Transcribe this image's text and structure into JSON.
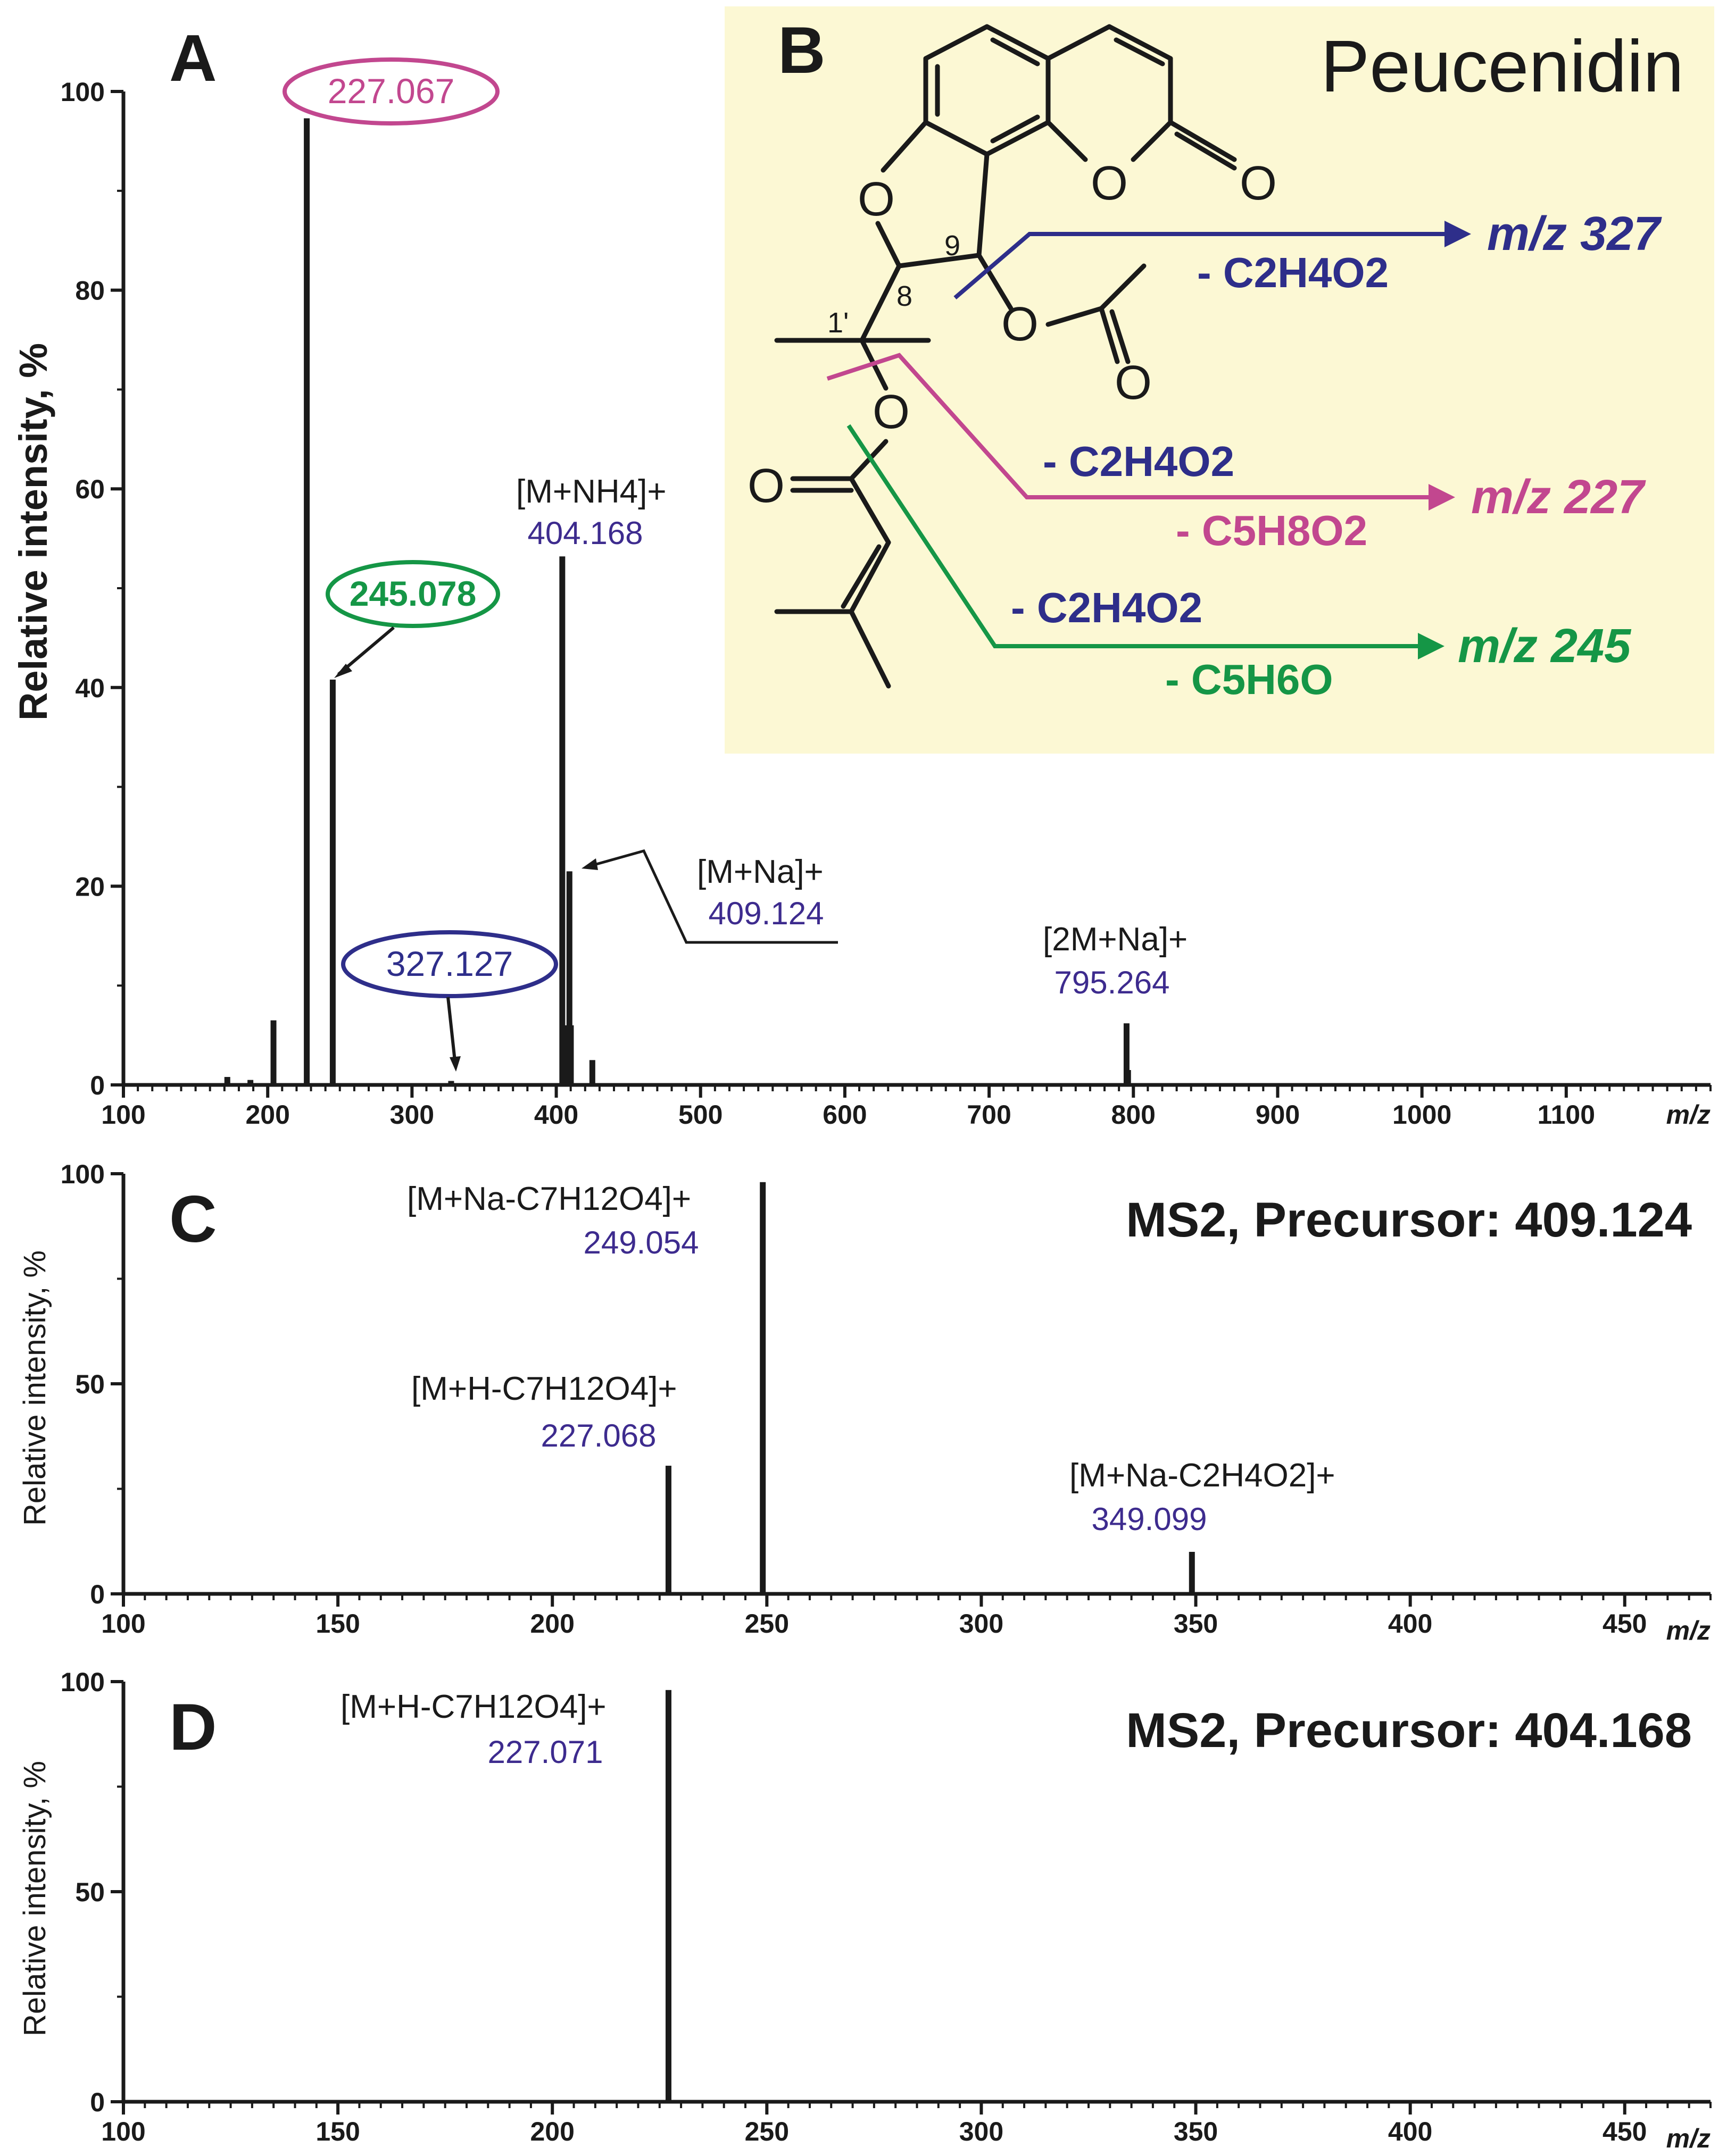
{
  "colors": {
    "axis": "#1a1a1a",
    "purple": "#3d2b8e",
    "navy": "#2e2e8a",
    "pink": "#c2478f",
    "green": "#159646",
    "panel_bg": "#fcf8d4"
  },
  "panel_a": {
    "letter": "A",
    "ylabel": "Relative intensity, %",
    "x_unit": "m/z",
    "annotations": {
      "mnh4_label": "[M+NH4]+",
      "mnh4_value": "404.168",
      "mna_label": "[M+Na]+",
      "mna_value": "409.124",
      "m2na_label": "[2M+Na]+",
      "m2na_value": "795.264",
      "oval_227": "227.067",
      "oval_245": "245.078",
      "oval_327": "327.127"
    }
  },
  "panel_b": {
    "letter": "B",
    "compound": "Peucenidin",
    "atoms": {
      "o_furan": "O",
      "o_lactone": "O",
      "o_carbonyl": "O",
      "o_acetyl": "O",
      "o_acetyl_carbonyl": "O",
      "o_ester": "O",
      "o_ester_carbonyl": "O"
    },
    "locants": {
      "c9": "9",
      "c8": "8",
      "c1p": "1'"
    },
    "fragments": [
      {
        "loss": "- C2H4O2",
        "product": "m/z 327"
      },
      {
        "loss1": "- C2H4O2",
        "loss2": "- C5H8O2",
        "product": "m/z 227"
      },
      {
        "loss1": "- C2H4O2",
        "loss2": "- C5H6O",
        "product": "m/z 245"
      }
    ]
  },
  "panel_c": {
    "letter": "C",
    "ylabel": "Relative intensity, %",
    "title": "MS2, Precursor: 409.124",
    "x_unit": "m/z",
    "annotations": {
      "p249_label": "[M+Na-C7H12O4]+",
      "p249_value": "249.054",
      "p227_label": "[M+H-C7H12O4]+",
      "p227_value": "227.068",
      "p349_label": "[M+Na-C2H4O2]+",
      "p349_value": "349.099"
    }
  },
  "panel_d": {
    "letter": "D",
    "ylabel": "Relative intensity, %",
    "title": "MS2, Precursor: 404.168",
    "x_unit": "m/z",
    "annotations": {
      "p227_label": "[M+H-C7H12O4]+",
      "p227_value": "227.071"
    }
  },
  "chart_data": [
    {
      "type": "bar",
      "panel": "A",
      "ylabel": "Relative intensity, %",
      "xlabel": "m/z",
      "xlim": [
        100,
        1200
      ],
      "ylim": [
        0,
        100
      ],
      "xticks": [
        100,
        200,
        300,
        400,
        500,
        600,
        700,
        800,
        900,
        1000,
        1100
      ],
      "yticks": [
        0,
        20,
        40,
        60,
        80,
        100
      ],
      "peaks": [
        {
          "x": 172,
          "y": 0.8
        },
        {
          "x": 188,
          "y": 0.5
        },
        {
          "x": 204,
          "y": 6.5
        },
        {
          "x": 227.067,
          "y": 97.3
        },
        {
          "x": 245.078,
          "y": 40.8
        },
        {
          "x": 327.127,
          "y": 0.4
        },
        {
          "x": 404.168,
          "y": 53.2
        },
        {
          "x": 405.2,
          "y": 6.0
        },
        {
          "x": 409.124,
          "y": 21.5
        },
        {
          "x": 410.1,
          "y": 6.0
        },
        {
          "x": 425.0,
          "y": 2.5
        },
        {
          "x": 795.264,
          "y": 6.2
        },
        {
          "x": 796.3,
          "y": 1.5
        }
      ]
    },
    {
      "type": "bar",
      "panel": "C",
      "ylabel": "Relative intensity, %",
      "xlabel": "m/z",
      "xlim": [
        100,
        470
      ],
      "ylim": [
        0,
        100
      ],
      "xticks": [
        100,
        150,
        200,
        250,
        300,
        350,
        400,
        450
      ],
      "yticks": [
        0,
        50,
        100
      ],
      "peaks": [
        {
          "x": 227.068,
          "y": 30.5
        },
        {
          "x": 249.054,
          "y": 98.0
        },
        {
          "x": 349.099,
          "y": 10.0
        }
      ]
    },
    {
      "type": "bar",
      "panel": "D",
      "ylabel": "Relative intensity, %",
      "xlabel": "m/z",
      "xlim": [
        100,
        470
      ],
      "ylim": [
        0,
        100
      ],
      "xticks": [
        100,
        150,
        200,
        250,
        300,
        350,
        400,
        450
      ],
      "yticks": [
        0,
        50,
        100
      ],
      "peaks": [
        {
          "x": 227.071,
          "y": 98.0
        }
      ]
    }
  ]
}
